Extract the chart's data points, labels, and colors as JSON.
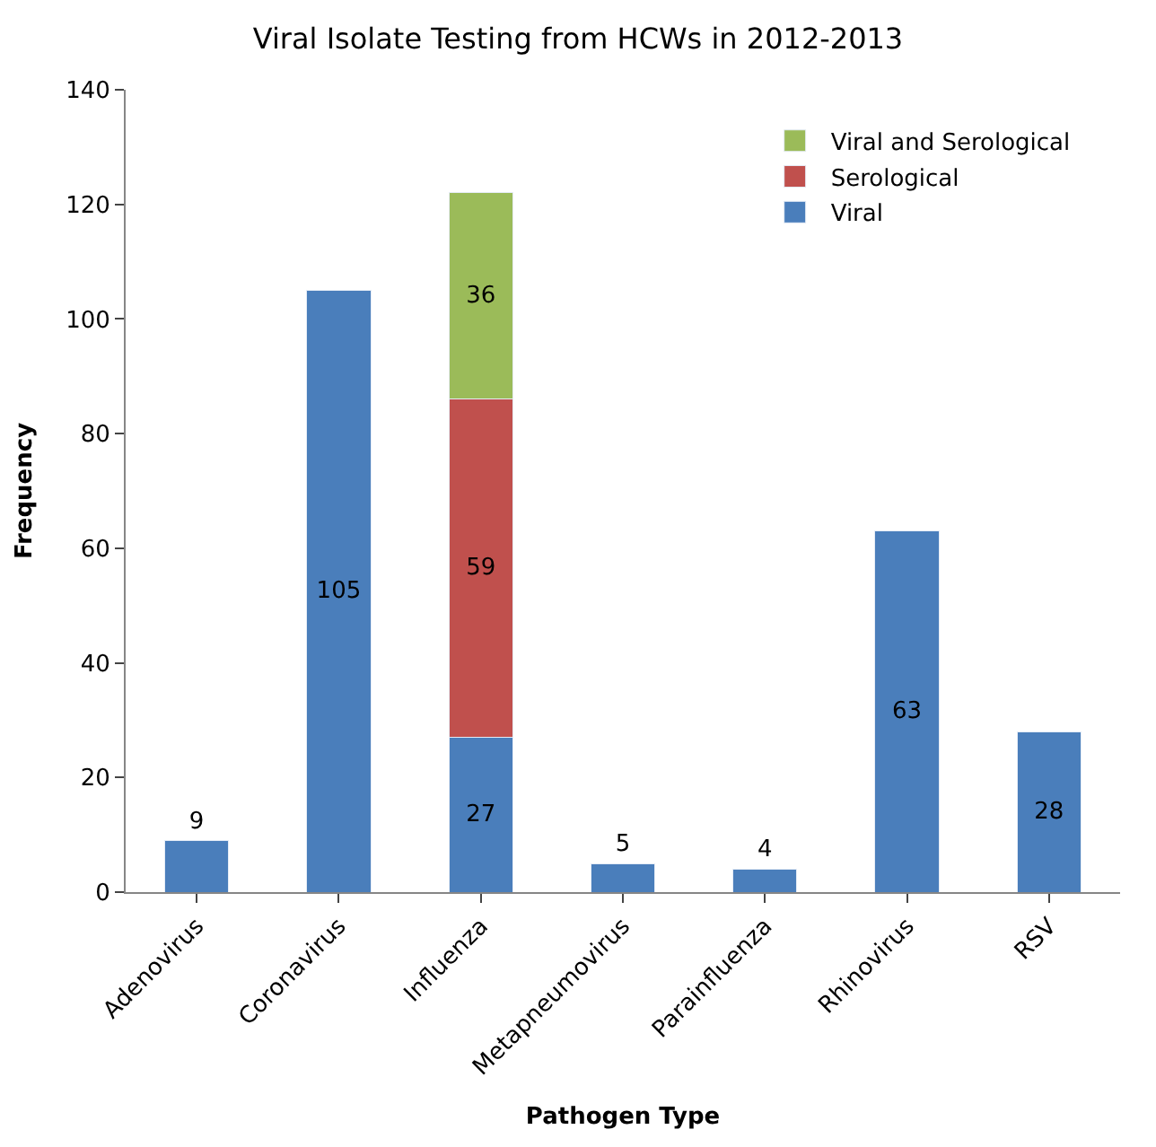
{
  "chart_data": {
    "type": "bar",
    "title": "Viral Isolate Testing from HCWs in 2012-2013",
    "xlabel": "Pathogen Type",
    "ylabel": "Frequency",
    "categories": [
      "Adenovirus",
      "Coronavirus",
      "Influenza",
      "Metapneumovirus",
      "Parainfluenza",
      "Rhinovirus",
      "RSV"
    ],
    "series": [
      {
        "name": "Viral",
        "color": "#4a7ebb",
        "values": [
          9,
          105,
          27,
          5,
          4,
          63,
          28
        ]
      },
      {
        "name": "Serological",
        "color": "#c0504d",
        "values": [
          null,
          null,
          59,
          null,
          null,
          null,
          null
        ]
      },
      {
        "name": "Viral and Serological",
        "color": "#9bbb59",
        "values": [
          null,
          null,
          36,
          null,
          null,
          null,
          null
        ]
      }
    ],
    "stacked": true,
    "data_labels": true,
    "ylim": [
      0,
      140
    ],
    "yticks": [
      0,
      20,
      40,
      60,
      80,
      100,
      120,
      140
    ],
    "legend": "top right"
  }
}
